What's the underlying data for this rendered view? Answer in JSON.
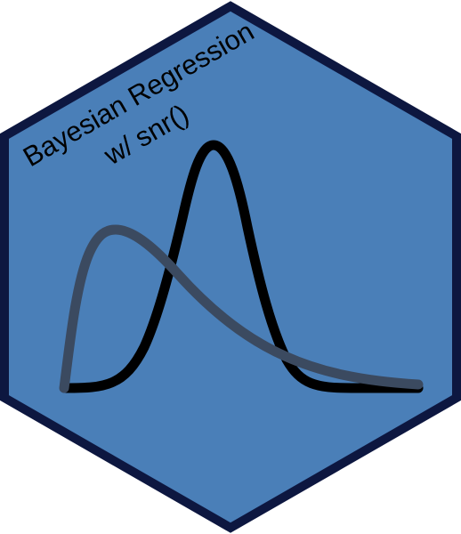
{
  "logo": {
    "title_line1": "Bayesian Regression",
    "title_line2": "w/ snr()",
    "colors": {
      "hex_fill": "#4a7fb8",
      "hex_border": "#0d1740",
      "narrow_curve": "#000000",
      "wide_curve": "#3b4a60"
    }
  }
}
